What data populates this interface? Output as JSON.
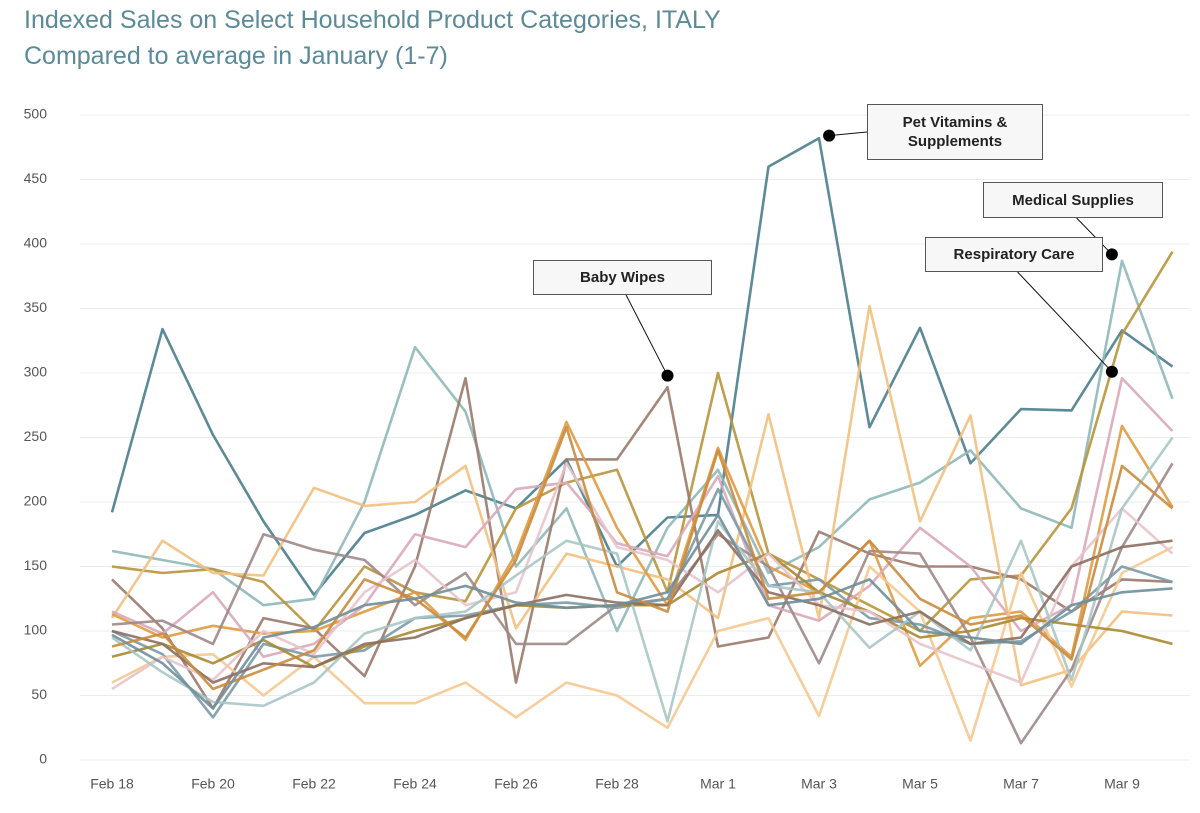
{
  "chart_data": {
    "type": "line",
    "title": "Indexed Sales on Select Household Product Categories, ITALY",
    "subtitle": "Compared to average in January (1-7)",
    "categories": [
      "Feb 18",
      null,
      "Feb 20",
      null,
      "Feb 22",
      null,
      "Feb 24",
      null,
      "Feb 26",
      null,
      "Feb 28",
      null,
      "Mar 1",
      null,
      "Mar 3",
      null,
      "Mar 5",
      null,
      "Mar 7",
      null,
      "Mar 9",
      null
    ],
    "ylim": [
      0,
      500
    ],
    "yticks": [
      0,
      50,
      100,
      150,
      200,
      250,
      300,
      350,
      400,
      450,
      500
    ],
    "grid": true,
    "series": [
      {
        "color": "#4a7d8c",
        "values": [
          192,
          334,
          252,
          185,
          128,
          176,
          190,
          209,
          195,
          233,
          150,
          188,
          190,
          460,
          482,
          258,
          335,
          230,
          272,
          271,
          333,
          305
        ]
      },
      {
        "color": "#8fb8ba",
        "values": [
          162,
          155,
          148,
          120,
          125,
          200,
          320,
          270,
          150,
          195,
          100,
          180,
          225,
          145,
          165,
          202,
          215,
          240,
          195,
          180,
          387,
          280
        ]
      },
      {
        "color": "#b8953a",
        "values": [
          150,
          145,
          148,
          138,
          100,
          150,
          130,
          123,
          195,
          215,
          225,
          130,
          300,
          160,
          140,
          120,
          100,
          140,
          143,
          195,
          330,
          394
        ]
      },
      {
        "color": "#9b7a6a",
        "values": [
          140,
          102,
          40,
          110,
          102,
          65,
          150,
          296,
          60,
          233,
          233,
          289,
          88,
          95,
          177,
          160,
          150,
          150,
          140,
          115,
          140,
          138
        ]
      },
      {
        "color": "#f2c080",
        "values": [
          110,
          170,
          145,
          143,
          211,
          197,
          200,
          228,
          102,
          160,
          150,
          140,
          110,
          268,
          110,
          352,
          185,
          267,
          58,
          70,
          115,
          112
        ]
      },
      {
        "color": "#e09a40",
        "values": [
          113,
          95,
          104,
          98,
          100,
          115,
          130,
          93,
          160,
          262,
          180,
          120,
          242,
          150,
          130,
          170,
          73,
          110,
          115,
          80,
          259,
          196
        ]
      },
      {
        "color": "#d9a9b8",
        "values": [
          115,
          98,
          130,
          80,
          90,
          120,
          175,
          165,
          210,
          215,
          168,
          158,
          220,
          120,
          108,
          135,
          180,
          150,
          100,
          120,
          296,
          255
        ]
      },
      {
        "color": "#f5c890",
        "values": [
          60,
          80,
          82,
          50,
          80,
          44,
          44,
          60,
          33,
          60,
          50,
          25,
          100,
          110,
          34,
          150,
          115,
          15,
          145,
          57,
          145,
          165
        ]
      },
      {
        "color": "#a08888",
        "values": [
          105,
          108,
          90,
          175,
          163,
          155,
          120,
          145,
          90,
          90,
          120,
          125,
          175,
          150,
          75,
          162,
          160,
          95,
          13,
          70,
          165,
          230
        ]
      },
      {
        "color": "#7a9aa8",
        "values": [
          100,
          82,
          33,
          90,
          80,
          85,
          110,
          112,
          120,
          122,
          118,
          125,
          210,
          135,
          140,
          110,
          105,
          90,
          92,
          115,
          150,
          138
        ]
      },
      {
        "color": "#a88a30",
        "values": [
          80,
          90,
          75,
          93,
          72,
          88,
          100,
          110,
          120,
          118,
          120,
          120,
          145,
          160,
          130,
          115,
          95,
          100,
          110,
          105,
          100,
          90
        ]
      },
      {
        "color": "#e8c4cc",
        "values": [
          55,
          80,
          62,
          100,
          82,
          130,
          155,
          120,
          130,
          230,
          165,
          155,
          130,
          160,
          120,
          115,
          90,
          75,
          60,
          150,
          195,
          160
        ]
      },
      {
        "color": "#a9c6c4",
        "values": [
          95,
          68,
          45,
          42,
          60,
          98,
          110,
          115,
          143,
          170,
          160,
          30,
          185,
          135,
          130,
          87,
          115,
          85,
          170,
          62,
          195,
          250
        ]
      },
      {
        "color": "#8c6f5f",
        "values": [
          100,
          90,
          60,
          75,
          72,
          90,
          95,
          110,
          120,
          128,
          122,
          120,
          178,
          130,
          120,
          105,
          115,
          90,
          95,
          150,
          165,
          170
        ]
      },
      {
        "color": "#c98b3c",
        "values": [
          88,
          98,
          55,
          70,
          85,
          140,
          125,
          95,
          155,
          258,
          130,
          115,
          240,
          125,
          130,
          170,
          125,
          105,
          112,
          78,
          228,
          195
        ]
      },
      {
        "color": "#6f8e9a",
        "values": [
          97,
          75,
          40,
          95,
          103,
          120,
          125,
          135,
          122,
          118,
          120,
          130,
          190,
          120,
          125,
          140,
          100,
          95,
          90,
          120,
          130,
          133
        ]
      }
    ],
    "annotations": [
      {
        "text": "Pet Vitamins & Supplements",
        "x": 14.2,
        "y": 484
      },
      {
        "text": "Baby Wipes",
        "x": 11,
        "y": 298
      },
      {
        "text": "Medical Supplies",
        "x": 19.8,
        "y": 392
      },
      {
        "text": "Respiratory Care",
        "x": 19.8,
        "y": 301
      }
    ]
  }
}
